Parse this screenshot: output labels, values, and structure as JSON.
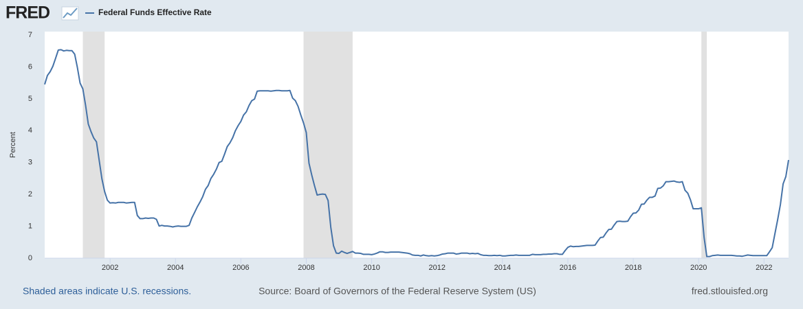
{
  "chart_data": {
    "type": "line",
    "logo": "FRED",
    "y_label": "Percent",
    "recession_note": "Shaded areas indicate U.S. recessions.",
    "source": "Source: Board of Governors of the Federal Reserve System (US)",
    "site": "fred.stlouisfed.org",
    "xlim": [
      2000,
      2022.75
    ],
    "xticks": [
      2002,
      2004,
      2006,
      2008,
      2010,
      2012,
      2014,
      2016,
      2018,
      2020,
      2022
    ],
    "ylim": [
      0,
      7
    ],
    "yticks": [
      0,
      1,
      2,
      3,
      4,
      5,
      6,
      7
    ],
    "recessions": [
      [
        2001.167,
        2001.833
      ],
      [
        2007.917,
        2009.417
      ],
      [
        2020.083,
        2020.25
      ]
    ],
    "recession_color": "#e1e1e1",
    "x": [
      2000,
      2000.083,
      2000.167,
      2000.25,
      2000.333,
      2000.417,
      2000.5,
      2000.583,
      2000.667,
      2000.75,
      2000.833,
      2000.917,
      2001,
      2001.083,
      2001.167,
      2001.25,
      2001.333,
      2001.417,
      2001.5,
      2001.583,
      2001.667,
      2001.75,
      2001.833,
      2001.917,
      2002,
      2002.083,
      2002.167,
      2002.25,
      2002.333,
      2002.417,
      2002.5,
      2002.583,
      2002.667,
      2002.75,
      2002.833,
      2002.917,
      2003,
      2003.083,
      2003.167,
      2003.25,
      2003.333,
      2003.417,
      2003.5,
      2003.583,
      2003.667,
      2003.75,
      2003.833,
      2003.917,
      2004,
      2004.083,
      2004.167,
      2004.25,
      2004.333,
      2004.417,
      2004.5,
      2004.583,
      2004.667,
      2004.75,
      2004.833,
      2004.917,
      2005,
      2005.083,
      2005.167,
      2005.25,
      2005.333,
      2005.417,
      2005.5,
      2005.583,
      2005.667,
      2005.75,
      2005.833,
      2005.917,
      2006,
      2006.083,
      2006.167,
      2006.25,
      2006.333,
      2006.417,
      2006.5,
      2006.583,
      2006.667,
      2006.75,
      2006.833,
      2006.917,
      2007,
      2007.083,
      2007.167,
      2007.25,
      2007.333,
      2007.417,
      2007.5,
      2007.583,
      2007.667,
      2007.75,
      2007.833,
      2007.917,
      2008,
      2008.083,
      2008.167,
      2008.25,
      2008.333,
      2008.417,
      2008.5,
      2008.583,
      2008.667,
      2008.75,
      2008.833,
      2008.917,
      2009,
      2009.083,
      2009.167,
      2009.25,
      2009.333,
      2009.417,
      2009.5,
      2009.583,
      2009.667,
      2009.75,
      2009.833,
      2009.917,
      2010,
      2010.083,
      2010.167,
      2010.25,
      2010.333,
      2010.417,
      2010.5,
      2010.583,
      2010.667,
      2010.75,
      2010.833,
      2010.917,
      2011,
      2011.083,
      2011.167,
      2011.25,
      2011.333,
      2011.417,
      2011.5,
      2011.583,
      2011.667,
      2011.75,
      2011.833,
      2011.917,
      2012,
      2012.083,
      2012.167,
      2012.25,
      2012.333,
      2012.417,
      2012.5,
      2012.583,
      2012.667,
      2012.75,
      2012.833,
      2012.917,
      2013,
      2013.083,
      2013.167,
      2013.25,
      2013.333,
      2013.417,
      2013.5,
      2013.583,
      2013.667,
      2013.75,
      2013.833,
      2013.917,
      2014,
      2014.083,
      2014.167,
      2014.25,
      2014.333,
      2014.417,
      2014.5,
      2014.583,
      2014.667,
      2014.75,
      2014.833,
      2014.917,
      2015,
      2015.083,
      2015.167,
      2015.25,
      2015.333,
      2015.417,
      2015.5,
      2015.583,
      2015.667,
      2015.75,
      2015.833,
      2015.917,
      2016,
      2016.083,
      2016.167,
      2016.25,
      2016.333,
      2016.417,
      2016.5,
      2016.583,
      2016.667,
      2016.75,
      2016.833,
      2016.917,
      2017,
      2017.083,
      2017.167,
      2017.25,
      2017.333,
      2017.417,
      2017.5,
      2017.583,
      2017.667,
      2017.75,
      2017.833,
      2017.917,
      2018,
      2018.083,
      2018.167,
      2018.25,
      2018.333,
      2018.417,
      2018.5,
      2018.583,
      2018.667,
      2018.75,
      2018.833,
      2018.917,
      2019,
      2019.083,
      2019.167,
      2019.25,
      2019.333,
      2019.417,
      2019.5,
      2019.583,
      2019.667,
      2019.75,
      2019.833,
      2019.917,
      2020,
      2020.083,
      2020.167,
      2020.25,
      2020.333,
      2020.417,
      2020.5,
      2020.583,
      2020.667,
      2020.75,
      2020.833,
      2020.917,
      2021,
      2021.083,
      2021.167,
      2021.25,
      2021.333,
      2021.417,
      2021.5,
      2021.583,
      2021.667,
      2021.75,
      2021.833,
      2021.917,
      2022,
      2022.083,
      2022.167,
      2022.25,
      2022.333,
      2022.417,
      2022.5,
      2022.583,
      2022.667,
      2022.75
    ],
    "series": [
      {
        "name": "Federal Funds Effective Rate",
        "color": "#4572a7",
        "values": [
          5.45,
          5.73,
          5.85,
          6.02,
          6.27,
          6.53,
          6.54,
          6.5,
          6.52,
          6.51,
          6.51,
          6.4,
          5.98,
          5.49,
          5.31,
          4.8,
          4.21,
          3.97,
          3.77,
          3.65,
          3.07,
          2.49,
          2.09,
          1.82,
          1.73,
          1.74,
          1.73,
          1.75,
          1.75,
          1.75,
          1.73,
          1.74,
          1.75,
          1.75,
          1.34,
          1.24,
          1.24,
          1.26,
          1.25,
          1.26,
          1.26,
          1.22,
          1.01,
          1.03,
          1.01,
          1.01,
          1.0,
          0.98,
          1.0,
          1.01,
          1.0,
          1.0,
          1.0,
          1.03,
          1.26,
          1.43,
          1.61,
          1.76,
          1.93,
          2.16,
          2.28,
          2.5,
          2.63,
          2.79,
          3.0,
          3.04,
          3.26,
          3.5,
          3.62,
          3.78,
          4.0,
          4.16,
          4.29,
          4.49,
          4.59,
          4.79,
          4.94,
          4.99,
          5.24,
          5.25,
          5.25,
          5.25,
          5.25,
          5.24,
          5.25,
          5.26,
          5.26,
          5.25,
          5.25,
          5.25,
          5.26,
          5.02,
          4.94,
          4.76,
          4.49,
          4.24,
          3.94,
          2.98,
          2.61,
          2.28,
          1.98,
          2.0,
          2.01,
          2.0,
          1.81,
          0.97,
          0.39,
          0.16,
          0.15,
          0.22,
          0.18,
          0.15,
          0.18,
          0.21,
          0.16,
          0.16,
          0.15,
          0.12,
          0.12,
          0.12,
          0.11,
          0.13,
          0.16,
          0.2,
          0.2,
          0.18,
          0.18,
          0.19,
          0.19,
          0.19,
          0.19,
          0.18,
          0.17,
          0.16,
          0.14,
          0.1,
          0.09,
          0.09,
          0.07,
          0.1,
          0.08,
          0.07,
          0.08,
          0.07,
          0.08,
          0.1,
          0.13,
          0.14,
          0.16,
          0.16,
          0.16,
          0.13,
          0.14,
          0.16,
          0.16,
          0.16,
          0.14,
          0.15,
          0.14,
          0.15,
          0.11,
          0.09,
          0.09,
          0.08,
          0.08,
          0.09,
          0.08,
          0.09,
          0.07,
          0.07,
          0.08,
          0.09,
          0.09,
          0.1,
          0.09,
          0.09,
          0.09,
          0.09,
          0.09,
          0.12,
          0.11,
          0.11,
          0.11,
          0.12,
          0.12,
          0.13,
          0.13,
          0.14,
          0.14,
          0.12,
          0.12,
          0.24,
          0.34,
          0.38,
          0.36,
          0.37,
          0.37,
          0.38,
          0.39,
          0.4,
          0.4,
          0.4,
          0.41,
          0.54,
          0.65,
          0.66,
          0.79,
          0.9,
          0.91,
          1.04,
          1.15,
          1.16,
          1.15,
          1.15,
          1.16,
          1.3,
          1.41,
          1.42,
          1.51,
          1.69,
          1.7,
          1.82,
          1.91,
          1.91,
          1.95,
          2.19,
          2.2,
          2.27,
          2.4,
          2.4,
          2.41,
          2.42,
          2.39,
          2.38,
          2.4,
          2.13,
          2.04,
          1.83,
          1.55,
          1.55,
          1.55,
          1.58,
          0.65,
          0.05,
          0.05,
          0.08,
          0.09,
          0.1,
          0.09,
          0.09,
          0.09,
          0.09,
          0.09,
          0.08,
          0.07,
          0.07,
          0.06,
          0.08,
          0.1,
          0.09,
          0.08,
          0.08,
          0.08,
          0.08,
          0.08,
          0.08,
          0.2,
          0.33,
          0.77,
          1.21,
          1.68,
          2.33,
          2.56,
          3.08
        ]
      }
    ]
  }
}
